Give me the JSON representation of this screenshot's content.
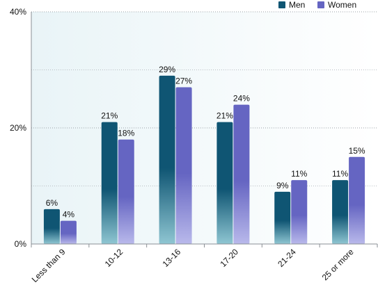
{
  "chart_data": {
    "type": "bar",
    "categories": [
      "Less than 9",
      "10-12",
      "13-16",
      "17-20",
      "21-24",
      "25 or more"
    ],
    "series": [
      {
        "name": "Men",
        "values": [
          6,
          21,
          29,
          21,
          9,
          11
        ],
        "labels": [
          "6%",
          "21%",
          "29%",
          "21%",
          "9%",
          "11%"
        ]
      },
      {
        "name": "Women",
        "values": [
          4,
          18,
          27,
          24,
          11,
          15
        ],
        "labels": [
          "4%",
          "18%",
          "27%",
          "24%",
          "11%",
          "15%"
        ]
      }
    ],
    "y_ticks": [
      0,
      20,
      40
    ],
    "y_tick_labels": [
      "0%",
      "20%",
      "40%"
    ],
    "ylim": [
      0,
      40
    ],
    "grid": "horizontal dotted",
    "legend": "top-right",
    "colors": {
      "men_top": "#0f5573",
      "men_bottom": "#8fc6d2",
      "women_top": "#6565c2",
      "women_bottom": "#b9b9eb",
      "plot_bg_left": "#e9f4f7",
      "plot_bg_right": "#ffffff"
    }
  }
}
